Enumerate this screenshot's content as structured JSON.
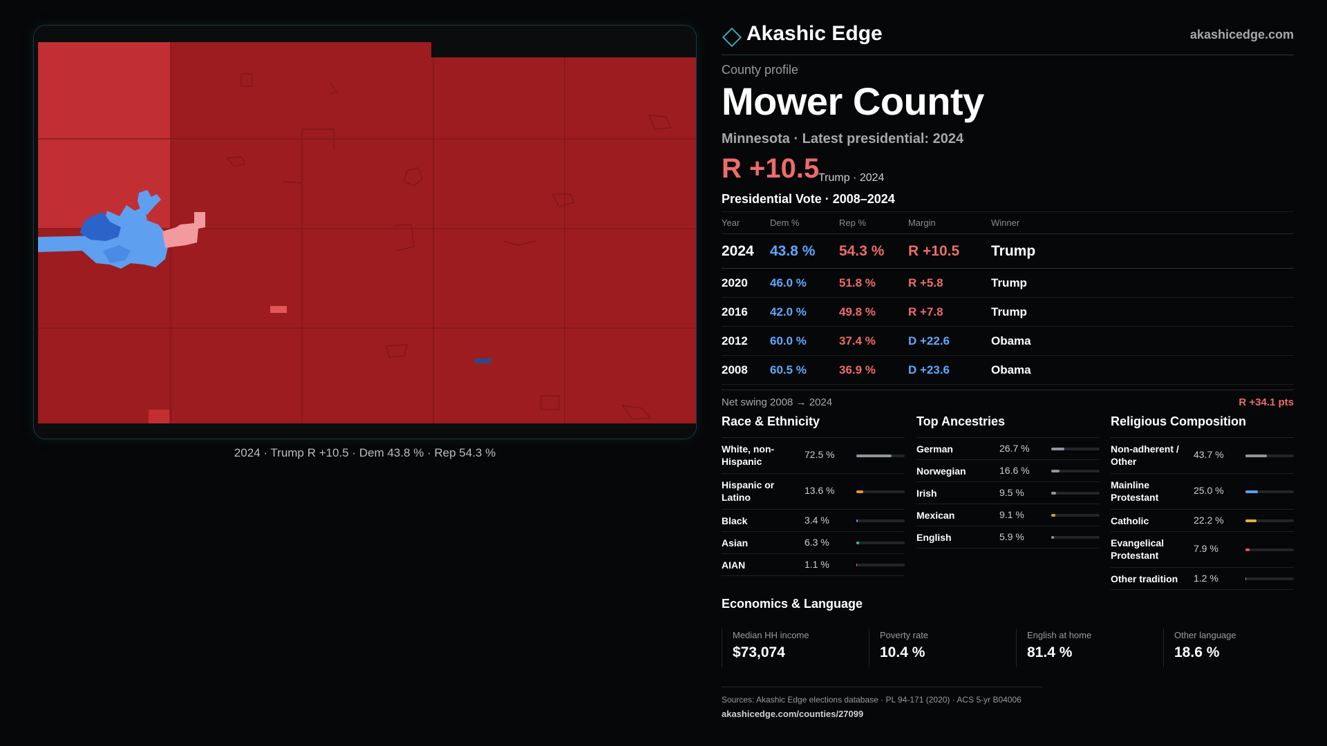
{
  "header": {
    "brand_name": "Akashic Edge",
    "brand_url": "akashicedge.com"
  },
  "profile": {
    "label": "County profile",
    "county": "Mower County",
    "subtitle": "Minnesota · Latest presidential: 2024",
    "margin": "R +10.5",
    "margin_note": "Trump · 2024"
  },
  "map": {
    "caption": "2024 · Trump R +10.5 · Dem 43.8 % · Rep 54.3 %",
    "colors": {
      "strong_rep": "#9d1c20",
      "rep": "#c12f33",
      "lean_rep": "#f29a9e",
      "dem": "#5e9fef",
      "strong_dem": "#2b63c9"
    }
  },
  "votes": {
    "title": "Presidential Vote · 2008–2024",
    "columns": [
      "Year",
      "Dem %",
      "Rep %",
      "Margin",
      "Winner"
    ],
    "rows": [
      {
        "year": "2024",
        "dem": "43.8 %",
        "rep": "54.3 %",
        "margin": "R +10.5",
        "party": "r",
        "winner": "Trump"
      },
      {
        "year": "2020",
        "dem": "46.0 %",
        "rep": "51.8 %",
        "margin": "R +5.8",
        "party": "r",
        "winner": "Trump"
      },
      {
        "year": "2016",
        "dem": "42.0 %",
        "rep": "49.8 %",
        "margin": "R +7.8",
        "party": "r",
        "winner": "Trump"
      },
      {
        "year": "2012",
        "dem": "60.0 %",
        "rep": "37.4 %",
        "margin": "D +22.6",
        "party": "d",
        "winner": "Obama"
      },
      {
        "year": "2008",
        "dem": "60.5 %",
        "rep": "36.9 %",
        "margin": "D +23.6",
        "party": "d",
        "winner": "Obama"
      }
    ],
    "swing_label": "Net swing 2008 → 2024",
    "swing_value": "R +34.1 pts"
  },
  "race": {
    "title": "Race & Ethnicity",
    "items": [
      {
        "label": "White, non-Hispanic",
        "pct": "72.5 %",
        "value": 72.5,
        "color": "#8f96a0",
        "two_line": true
      },
      {
        "label": "Hispanic or Latino",
        "pct": "13.6 %",
        "value": 13.6,
        "color": "#e59a2b",
        "two_line": true
      },
      {
        "label": "Black",
        "pct": "3.4 %",
        "value": 3.4,
        "color": "#8b7ee8",
        "two_line": false
      },
      {
        "label": "Asian",
        "pct": "6.3 %",
        "value": 6.3,
        "color": "#3fc08a",
        "two_line": false
      },
      {
        "label": "AIAN",
        "pct": "1.1 %",
        "value": 1.1,
        "color": "#e5733a",
        "two_line": false
      }
    ]
  },
  "ancestry": {
    "title": "Top Ancestries",
    "items": [
      {
        "label": "German",
        "pct": "26.7 %",
        "value": 26.7,
        "color": "#8f96a0",
        "two_line": false
      },
      {
        "label": "Norwegian",
        "pct": "16.6 %",
        "value": 16.6,
        "color": "#8f96a0",
        "two_line": false
      },
      {
        "label": "Irish",
        "pct": "9.5 %",
        "value": 9.5,
        "color": "#8f96a0",
        "two_line": false
      },
      {
        "label": "Mexican",
        "pct": "9.1 %",
        "value": 9.1,
        "color": "#e59a2b",
        "two_line": false
      },
      {
        "label": "English",
        "pct": "5.9 %",
        "value": 5.9,
        "color": "#8f96a0",
        "two_line": false
      }
    ]
  },
  "religion": {
    "title": "Religious Composition",
    "items": [
      {
        "label": "Non-adherent / Other",
        "pct": "43.7 %",
        "value": 43.7,
        "color": "#8f96a0",
        "two_line": true
      },
      {
        "label": "Mainline Protestant",
        "pct": "25.0 %",
        "value": 25.0,
        "color": "#5e9fef",
        "two_line": true
      },
      {
        "label": "Catholic",
        "pct": "22.2 %",
        "value": 22.2,
        "color": "#e5b22b",
        "two_line": false
      },
      {
        "label": "Evangelical Protestant",
        "pct": "7.9 %",
        "value": 7.9,
        "color": "#e5565a",
        "two_line": true
      },
      {
        "label": "Other tradition",
        "pct": "1.2 %",
        "value": 1.2,
        "color": "#8f96a0",
        "two_line": false
      }
    ]
  },
  "economics": {
    "title": "Economics & Language",
    "items": [
      {
        "label": "Median HH income",
        "value": "$73,074"
      },
      {
        "label": "Poverty rate",
        "value": "10.4 %"
      },
      {
        "label": "English at home",
        "value": "81.4 %"
      },
      {
        "label": "Other language",
        "value": "18.6 %"
      }
    ]
  },
  "footer": {
    "sources": "Sources: Akashic Edge elections database · PL 94-171 (2020) · ACS 5-yr B04006",
    "url": "akashicedge.com/counties/27099"
  }
}
